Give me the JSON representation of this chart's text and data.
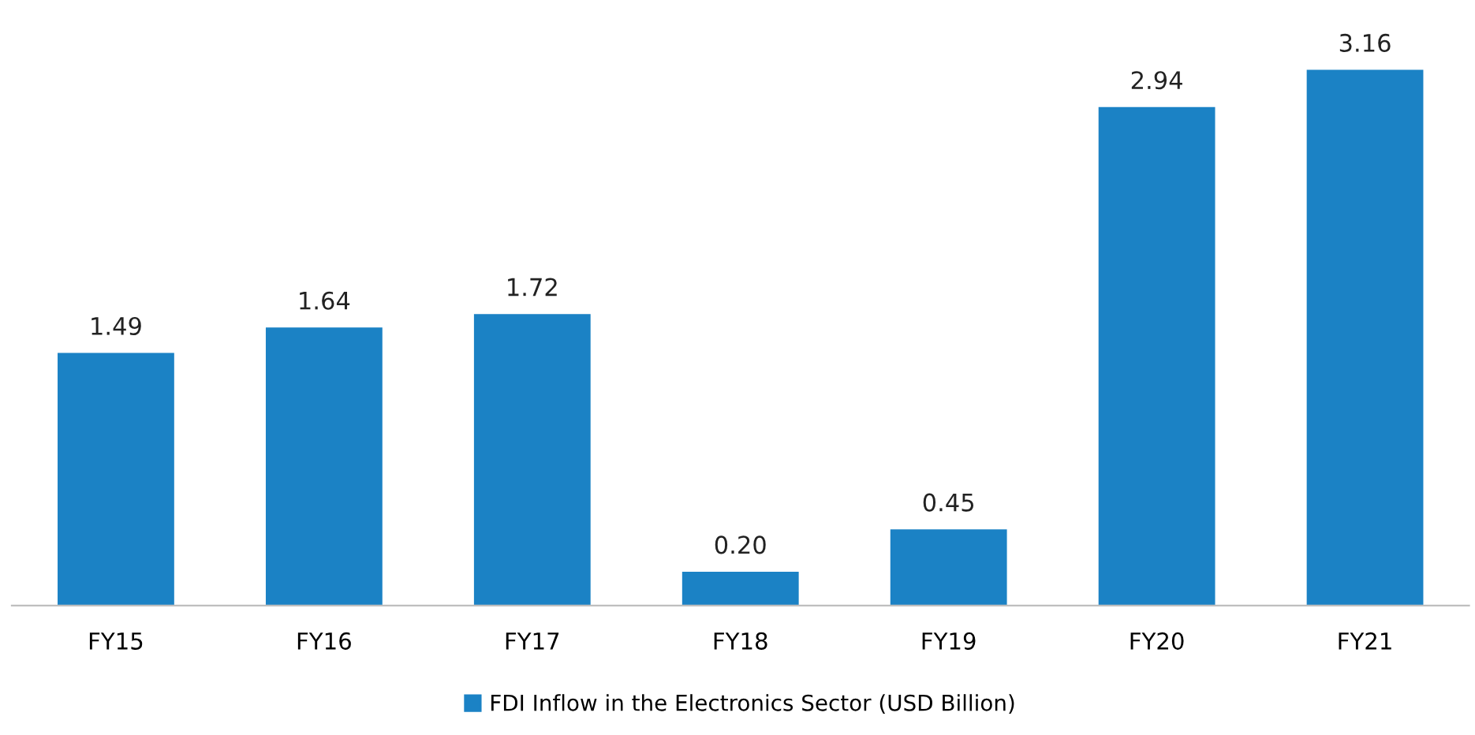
{
  "chart_data": {
    "type": "bar",
    "categories": [
      "FY15",
      "FY16",
      "FY17",
      "FY18",
      "FY19",
      "FY20",
      "FY21"
    ],
    "series": [
      {
        "name": "FDI Inflow in the Electronics Sector (USD Billion)",
        "color": "#1b82c5",
        "values": [
          1.49,
          1.64,
          1.72,
          0.2,
          0.45,
          2.94,
          3.16
        ],
        "value_labels": [
          "1.49",
          "1.64",
          "1.72",
          "0.20",
          "0.45",
          "2.94",
          "3.16"
        ]
      }
    ],
    "legend": "bottom",
    "grid": false
  }
}
